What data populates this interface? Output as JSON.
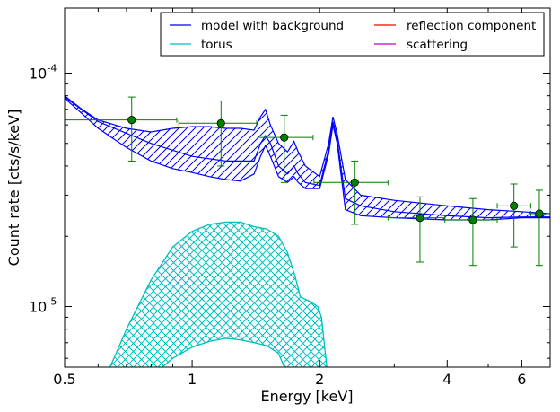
{
  "chart_data": {
    "type": "line",
    "xlabel": "Energy [keV]",
    "ylabel": "Count rate [cts/s/keV]",
    "xscale": "log",
    "yscale": "log",
    "xlim": [
      0.5,
      7.0
    ],
    "ylim": [
      5.5e-06,
      0.00019
    ],
    "x_ticks": [
      {
        "value": 0.5,
        "label": "0.5"
      },
      {
        "value": 1,
        "label": "1"
      },
      {
        "value": 2,
        "label": "2"
      },
      {
        "value": 4,
        "label": "4"
      },
      {
        "value": 6,
        "label": "6"
      }
    ],
    "y_ticks": [
      {
        "value": 0.0001,
        "base": "10",
        "exp": "-4"
      },
      {
        "value": 1e-05,
        "base": "10",
        "exp": "-5"
      }
    ],
    "legend": {
      "placement": "top-right",
      "entries": [
        {
          "label": "model with background",
          "color": "#0000ff"
        },
        {
          "label": "torus",
          "color": "#00bfbf"
        },
        {
          "label": "reflection component",
          "color": "#ff0000"
        },
        {
          "label": "scattering",
          "color": "#bf00bf"
        }
      ]
    },
    "series": [
      {
        "name": "model with background",
        "color": "#0000ff",
        "style": "hatched-band",
        "upper": [
          [
            0.5,
            8e-05
          ],
          [
            0.55,
            7e-05
          ],
          [
            0.6,
            6.3e-05
          ],
          [
            0.7,
            5.8e-05
          ],
          [
            0.8,
            5.6e-05
          ],
          [
            0.9,
            5.8e-05
          ],
          [
            1.0,
            5.9e-05
          ],
          [
            1.1,
            5.9e-05
          ],
          [
            1.2,
            5.8e-05
          ],
          [
            1.3,
            5.8e-05
          ],
          [
            1.4,
            5.7e-05
          ],
          [
            1.45,
            6.5e-05
          ],
          [
            1.49,
            7e-05
          ],
          [
            1.53,
            6e-05
          ],
          [
            1.6,
            5e-05
          ],
          [
            1.68,
            4.6e-05
          ],
          [
            1.74,
            5.1e-05
          ],
          [
            1.78,
            4.6e-05
          ],
          [
            1.85,
            4e-05
          ],
          [
            2.0,
            3.6e-05
          ],
          [
            2.1,
            5e-05
          ],
          [
            2.15,
            6.5e-05
          ],
          [
            2.2,
            5.5e-05
          ],
          [
            2.3,
            3.5e-05
          ],
          [
            2.5,
            3e-05
          ],
          [
            3.0,
            2.85e-05
          ],
          [
            4.0,
            2.7e-05
          ],
          [
            5.0,
            2.6e-05
          ],
          [
            6.0,
            2.55e-05
          ],
          [
            7.0,
            2.5e-05
          ]
        ],
        "lower": [
          [
            0.5,
            7.8e-05
          ],
          [
            0.55,
            6.7e-05
          ],
          [
            0.6,
            5.8e-05
          ],
          [
            0.7,
            4.8e-05
          ],
          [
            0.8,
            4.2e-05
          ],
          [
            0.9,
            3.9e-05
          ],
          [
            1.0,
            3.75e-05
          ],
          [
            1.1,
            3.6e-05
          ],
          [
            1.2,
            3.5e-05
          ],
          [
            1.3,
            3.45e-05
          ],
          [
            1.4,
            3.7e-05
          ],
          [
            1.45,
            4.4e-05
          ],
          [
            1.49,
            4.9e-05
          ],
          [
            1.53,
            4.4e-05
          ],
          [
            1.6,
            3.6e-05
          ],
          [
            1.68,
            3.4e-05
          ],
          [
            1.74,
            3.6e-05
          ],
          [
            1.78,
            3.4e-05
          ],
          [
            1.85,
            3.2e-05
          ],
          [
            2.0,
            3.2e-05
          ],
          [
            2.1,
            4.5e-05
          ],
          [
            2.15,
            6e-05
          ],
          [
            2.2,
            5e-05
          ],
          [
            2.3,
            2.6e-05
          ],
          [
            2.5,
            2.45e-05
          ],
          [
            3.0,
            2.4e-05
          ],
          [
            4.0,
            2.35e-05
          ],
          [
            5.0,
            2.35e-05
          ],
          [
            6.0,
            2.4e-05
          ],
          [
            7.0,
            2.4e-05
          ]
        ],
        "upper_mid": [
          [
            0.5,
            7.9e-05
          ],
          [
            0.6,
            6.2e-05
          ],
          [
            0.8,
            5e-05
          ],
          [
            1.0,
            4.4e-05
          ],
          [
            1.2,
            4.2e-05
          ],
          [
            1.4,
            4.2e-05
          ],
          [
            1.45,
            5e-05
          ],
          [
            1.49,
            5.4e-05
          ],
          [
            1.53,
            5e-05
          ],
          [
            1.6,
            4e-05
          ],
          [
            1.68,
            3.7e-05
          ],
          [
            1.74,
            4e-05
          ],
          [
            1.78,
            3.7e-05
          ],
          [
            1.85,
            3.4e-05
          ],
          [
            2.0,
            3.3e-05
          ],
          [
            2.1,
            4.7e-05
          ],
          [
            2.15,
            6.2e-05
          ],
          [
            2.2,
            5.2e-05
          ],
          [
            2.3,
            2.9e-05
          ],
          [
            2.5,
            2.7e-05
          ],
          [
            3.0,
            2.55e-05
          ],
          [
            4.0,
            2.45e-05
          ],
          [
            5.0,
            2.4e-05
          ],
          [
            6.0,
            2.42e-05
          ],
          [
            7.0,
            2.42e-05
          ]
        ]
      },
      {
        "name": "torus",
        "color": "#00bfbf",
        "style": "crosshatched-band",
        "upper": [
          [
            0.64,
            5.5e-06
          ],
          [
            0.7,
            8e-06
          ],
          [
            0.8,
            1.3e-05
          ],
          [
            0.9,
            1.8e-05
          ],
          [
            1.0,
            2.1e-05
          ],
          [
            1.1,
            2.25e-05
          ],
          [
            1.2,
            2.3e-05
          ],
          [
            1.3,
            2.3e-05
          ],
          [
            1.4,
            2.2e-05
          ],
          [
            1.5,
            2.15e-05
          ],
          [
            1.6,
            2e-05
          ],
          [
            1.68,
            1.7e-05
          ],
          [
            1.75,
            1.35e-05
          ],
          [
            1.8,
            1.1e-05
          ],
          [
            1.9,
            1.05e-05
          ],
          [
            1.98,
            1e-05
          ],
          [
            2.02,
            9e-06
          ],
          [
            2.08,
            5.5e-06
          ]
        ],
        "lower": [
          [
            0.85,
            5.5e-06
          ],
          [
            0.9,
            6e-06
          ],
          [
            1.0,
            6.7e-06
          ],
          [
            1.1,
            7.1e-06
          ],
          [
            1.2,
            7.3e-06
          ],
          [
            1.3,
            7.2e-06
          ],
          [
            1.4,
            7e-06
          ],
          [
            1.5,
            6.8e-06
          ],
          [
            1.6,
            6.3e-06
          ],
          [
            1.65,
            5.5e-06
          ]
        ]
      }
    ],
    "data_points": {
      "color": "#007f00",
      "points": [
        {
          "x": 0.72,
          "xlo": 0.5,
          "xhi": 0.92,
          "y": 6.3e-05,
          "ylo": 4.2e-05,
          "yhi": 7.9e-05
        },
        {
          "x": 1.17,
          "xlo": 0.93,
          "xhi": 1.42,
          "y": 6.1e-05,
          "ylo": 4e-05,
          "yhi": 7.6e-05
        },
        {
          "x": 1.65,
          "xlo": 1.43,
          "xhi": 1.93,
          "y": 5.3e-05,
          "ylo": 3.4e-05,
          "yhi": 6.6e-05
        },
        {
          "x": 2.42,
          "xlo": 1.94,
          "xhi": 2.9,
          "y": 3.4e-05,
          "ylo": 2.25e-05,
          "yhi": 4.2e-05
        },
        {
          "x": 3.45,
          "xlo": 2.9,
          "xhi": 3.95,
          "y": 2.4e-05,
          "ylo": 1.55e-05,
          "yhi": 2.95e-05
        },
        {
          "x": 4.6,
          "xlo": 3.95,
          "xhi": 5.25,
          "y": 2.35e-05,
          "ylo": 1.5e-05,
          "yhi": 2.9e-05
        },
        {
          "x": 5.75,
          "xlo": 5.25,
          "xhi": 6.3,
          "y": 2.7e-05,
          "ylo": 1.8e-05,
          "yhi": 3.35e-05
        },
        {
          "x": 6.6,
          "xlo": 6.3,
          "xhi": 7.0,
          "y": 2.5e-05,
          "ylo": 1.5e-05,
          "yhi": 3.15e-05
        }
      ]
    }
  }
}
